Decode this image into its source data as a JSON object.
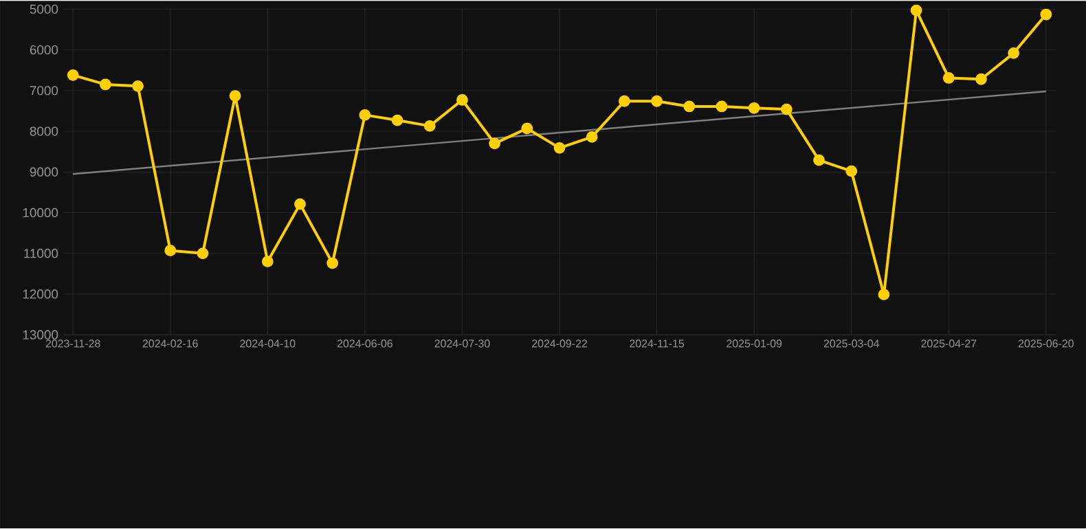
{
  "chart_data": {
    "type": "line",
    "categories": [
      "2023-11-28",
      null,
      null,
      "2024-02-16",
      null,
      null,
      "2024-04-10",
      null,
      null,
      "2024-06-06",
      null,
      null,
      "2024-07-30",
      null,
      null,
      "2024-09-22",
      null,
      null,
      "2024-11-15",
      null,
      null,
      "2025-01-09",
      null,
      null,
      "2025-03-04",
      null,
      null,
      "2025-04-27",
      null,
      null,
      "2025-06-20"
    ],
    "series": [
      {
        "color": "#ffd000",
        "marker": "circle",
        "values": [
          6620,
          6850,
          6890,
          10930,
          11000,
          7130,
          11200,
          9790,
          11240,
          7600,
          7730,
          7870,
          7230,
          8300,
          7930,
          8410,
          8140,
          7260,
          7260,
          7390,
          7390,
          7430,
          7460,
          8710,
          8980,
          12010,
          5030,
          6690,
          6720,
          6080,
          5130
        ]
      },
      {
        "color": "#808080",
        "marker": "none",
        "values": [
          9050,
          null,
          null,
          null,
          null,
          null,
          null,
          null,
          null,
          null,
          null,
          null,
          null,
          null,
          null,
          null,
          null,
          null,
          null,
          null,
          null,
          null,
          null,
          null,
          null,
          null,
          null,
          null,
          null,
          null,
          7020
        ]
      }
    ],
    "ylim": [
      13000,
      5000
    ],
    "yticks": [
      5000,
      6000,
      7000,
      8000,
      9000,
      10000,
      11000,
      12000,
      13000
    ],
    "grid": true,
    "line_style": "solid"
  }
}
